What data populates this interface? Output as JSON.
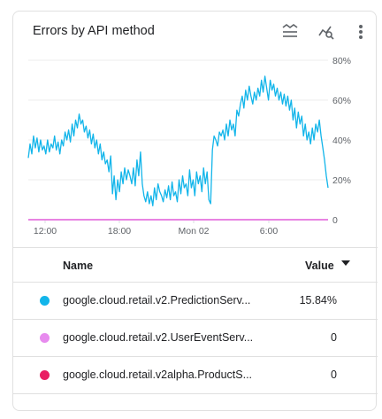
{
  "card": {
    "title": "Errors by API method",
    "icons": [
      "legend-toggle-icon",
      "explore-chart-icon",
      "more-vert-icon"
    ]
  },
  "chart_data": {
    "type": "line",
    "title": "Errors by API method",
    "x_tick_labels": [
      "12:00",
      "18:00",
      "Mon 02",
      "6:00"
    ],
    "y_tick_labels": [
      "0",
      "20%",
      "40%",
      "60%",
      "80%"
    ],
    "ylim": [
      0,
      80
    ],
    "grid": true,
    "series": [
      {
        "name": "google.cloud.retail.v2.PredictionServ...",
        "color": "#12b5ea",
        "values": [
          31,
          38,
          33,
          42,
          36,
          41,
          34,
          40,
          35,
          37,
          33,
          40,
          34,
          38,
          36,
          42,
          35,
          39,
          33,
          40,
          37,
          44,
          40,
          45,
          39,
          48,
          42,
          50,
          46,
          53,
          48,
          50,
          44,
          47,
          41,
          45,
          38,
          43,
          36,
          40,
          33,
          38,
          30,
          34,
          28,
          30,
          24,
          32,
          13,
          22,
          10,
          20,
          14,
          24,
          18,
          26,
          20,
          25,
          22,
          18,
          26,
          17,
          30,
          22,
          34,
          18,
          12,
          9,
          14,
          8,
          12,
          7,
          16,
          10,
          18,
          14,
          12,
          9,
          15,
          11,
          17,
          10,
          19,
          12,
          14,
          9,
          20,
          13,
          22,
          16,
          18,
          12,
          25,
          16,
          20,
          12,
          24,
          18,
          22,
          14,
          26,
          18,
          24,
          10,
          8,
          35,
          42,
          40,
          37,
          44,
          42,
          45,
          40,
          48,
          42,
          50,
          45,
          48,
          42,
          55,
          52,
          58,
          62,
          56,
          65,
          60,
          67,
          62,
          58,
          64,
          60,
          66,
          62,
          70,
          64,
          72,
          66,
          60,
          70,
          65,
          68,
          62,
          66,
          60,
          64,
          58,
          63,
          57,
          62,
          55,
          60,
          50,
          56,
          46,
          54,
          48,
          52,
          42,
          48,
          40,
          44,
          38,
          46,
          40,
          48,
          44,
          50,
          42,
          36,
          30,
          22,
          16
        ]
      },
      {
        "name": "google.cloud.retail.v2.UserEventServ...",
        "color": "#e78bee",
        "values": [
          0,
          0
        ]
      },
      {
        "name": "google.cloud.retail.v2alpha.ProductS...",
        "color": "#e91e63",
        "values": [
          0,
          0
        ]
      }
    ]
  },
  "table": {
    "headers": {
      "name": "Name",
      "value": "Value"
    },
    "rows": [
      {
        "name": "google.cloud.retail.v2.PredictionServ...",
        "value": "15.84%",
        "color": "#12b5ea"
      },
      {
        "name": "google.cloud.retail.v2.UserEventServ...",
        "value": "0",
        "color": "#e78bee"
      },
      {
        "name": "google.cloud.retail.v2alpha.ProductS...",
        "value": "0",
        "color": "#e91e63"
      }
    ]
  }
}
